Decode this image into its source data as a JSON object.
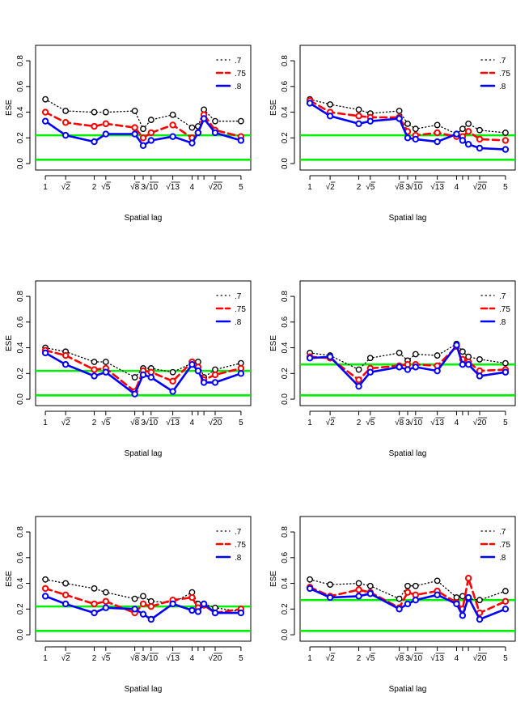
{
  "figure": {
    "layout": "3 rows x 2 columns of small-multiple line charts"
  },
  "chart_data": [
    {
      "panel": "row1-left",
      "type": "line",
      "xlabel": "Spatial lag",
      "ylabel": "ESE",
      "xlim": [
        0.8,
        5.2
      ],
      "ylim": [
        -0.05,
        0.92
      ],
      "x": [
        1,
        1.41421,
        2,
        2.23607,
        2.82843,
        3,
        3.16228,
        3.60555,
        4,
        4.12311,
        4.24264,
        4.47214,
        5
      ],
      "x_tick_values": [
        1,
        1.41421,
        2,
        2.23607,
        2.82843,
        3,
        3.16228,
        3.60555,
        4,
        4.12311,
        4.24264,
        4.47214,
        5
      ],
      "x_tick_labels": [
        "1",
        "√2",
        "2",
        "√5",
        "√8",
        "3",
        "√10",
        "√13",
        "4",
        "",
        "",
        "√20",
        "5"
      ],
      "y_ticks": [
        "0.0",
        "0.2",
        "0.4",
        "0.6",
        "0.8"
      ],
      "y_tick_values": [
        0,
        0.2,
        0.4,
        0.6,
        0.8
      ],
      "hlines": [
        0.22,
        0.03
      ],
      "hline_color": "#00ee00",
      "legend_position": "top-right",
      "series": [
        {
          "name": ".7",
          "style": "dotted",
          "color": "#000000",
          "values": [
            0.5,
            0.41,
            0.4,
            0.4,
            0.41,
            0.27,
            0.34,
            0.38,
            0.28,
            0.29,
            0.42,
            0.33,
            0.33
          ]
        },
        {
          "name": ".75",
          "style": "dashed",
          "color": "#ff0000",
          "values": [
            0.4,
            0.32,
            0.29,
            0.31,
            0.28,
            0.2,
            0.24,
            0.3,
            0.2,
            0.24,
            0.38,
            0.26,
            0.21
          ]
        },
        {
          "name": ".8",
          "style": "solid",
          "color": "#0000ff",
          "values": [
            0.33,
            0.22,
            0.17,
            0.23,
            0.23,
            0.14,
            0.18,
            0.21,
            0.16,
            0.24,
            0.35,
            0.24,
            0.18
          ]
        }
      ]
    },
    {
      "panel": "row1-right",
      "type": "line",
      "xlabel": "Spatial lag",
      "ylabel": "ESE",
      "xlim": [
        0.8,
        5.2
      ],
      "ylim": [
        -0.05,
        0.92
      ],
      "x": [
        1,
        1.41421,
        2,
        2.23607,
        2.82843,
        3,
        3.16228,
        3.60555,
        4,
        4.12311,
        4.24264,
        4.47214,
        5
      ],
      "x_tick_values": [
        1,
        1.41421,
        2,
        2.23607,
        2.82843,
        3,
        3.16228,
        3.60555,
        4,
        4.12311,
        4.24264,
        4.47214,
        5
      ],
      "x_tick_labels": [
        "1",
        "√2",
        "2",
        "√5",
        "√8",
        "3",
        "√10",
        "√13",
        "4",
        "",
        "",
        "√20",
        "5"
      ],
      "y_ticks": [
        "0.0",
        "0.2",
        "0.4",
        "0.6",
        "0.8"
      ],
      "y_tick_values": [
        0,
        0.2,
        0.4,
        0.6,
        0.8
      ],
      "hlines": [
        0.22,
        0.03
      ],
      "hline_color": "#00ee00",
      "legend_position": "top-right",
      "series": [
        {
          "name": ".7",
          "style": "dotted",
          "color": "#000000",
          "values": [
            0.5,
            0.46,
            0.42,
            0.39,
            0.41,
            0.31,
            0.27,
            0.3,
            0.23,
            0.27,
            0.31,
            0.26,
            0.24
          ]
        },
        {
          "name": ".75",
          "style": "dashed",
          "color": "#ff0000",
          "values": [
            0.49,
            0.4,
            0.37,
            0.36,
            0.36,
            0.25,
            0.22,
            0.24,
            0.21,
            0.21,
            0.25,
            0.19,
            0.18
          ]
        },
        {
          "name": ".8",
          "style": "solid",
          "color": "#0000ff",
          "values": [
            0.47,
            0.37,
            0.31,
            0.33,
            0.35,
            0.2,
            0.19,
            0.17,
            0.23,
            0.18,
            0.15,
            0.12,
            0.11
          ]
        }
      ]
    },
    {
      "panel": "row2-left",
      "type": "line",
      "xlabel": "Spatial lag",
      "ylabel": "ESE",
      "xlim": [
        0.8,
        5.2
      ],
      "ylim": [
        -0.05,
        0.92
      ],
      "x": [
        1,
        1.41421,
        2,
        2.23607,
        2.82843,
        3,
        3.16228,
        3.60555,
        4,
        4.12311,
        4.24264,
        4.47214,
        5
      ],
      "x_tick_values": [
        1,
        1.41421,
        2,
        2.23607,
        2.82843,
        3,
        3.16228,
        3.60555,
        4,
        4.12311,
        4.24264,
        4.47214,
        5
      ],
      "x_tick_labels": [
        "1",
        "√2",
        "2",
        "√5",
        "√8",
        "3",
        "√10",
        "√13",
        "4",
        "",
        "",
        "√20",
        "5"
      ],
      "y_ticks": [
        "0.0",
        "0.2",
        "0.4",
        "0.6",
        "0.8"
      ],
      "y_tick_values": [
        0,
        0.2,
        0.4,
        0.6,
        0.8
      ],
      "hlines": [
        0.22,
        0.03
      ],
      "hline_color": "#00ee00",
      "legend_position": "top-right",
      "series": [
        {
          "name": ".7",
          "style": "dotted",
          "color": "#000000",
          "values": [
            0.4,
            0.37,
            0.29,
            0.29,
            0.17,
            0.24,
            0.24,
            0.21,
            0.28,
            0.29,
            0.17,
            0.23,
            0.28
          ]
        },
        {
          "name": ".75",
          "style": "dashed",
          "color": "#ff0000",
          "values": [
            0.38,
            0.34,
            0.23,
            0.24,
            0.06,
            0.22,
            0.21,
            0.14,
            0.29,
            0.25,
            0.15,
            0.19,
            0.24
          ]
        },
        {
          "name": ".8",
          "style": "solid",
          "color": "#0000ff",
          "values": [
            0.36,
            0.27,
            0.18,
            0.21,
            0.04,
            0.19,
            0.17,
            0.06,
            0.27,
            0.22,
            0.13,
            0.13,
            0.2
          ]
        }
      ]
    },
    {
      "panel": "row2-right",
      "type": "line",
      "xlabel": "Spatial lag",
      "ylabel": "ESE",
      "xlim": [
        0.8,
        5.2
      ],
      "ylim": [
        -0.05,
        0.92
      ],
      "x": [
        1,
        1.41421,
        2,
        2.23607,
        2.82843,
        3,
        3.16228,
        3.60555,
        4,
        4.12311,
        4.24264,
        4.47214,
        5
      ],
      "x_tick_values": [
        1,
        1.41421,
        2,
        2.23607,
        2.82843,
        3,
        3.16228,
        3.60555,
        4,
        4.12311,
        4.24264,
        4.47214,
        5
      ],
      "x_tick_labels": [
        "1",
        "√2",
        "2",
        "√5",
        "√8",
        "3",
        "√10",
        "√13",
        "4",
        "",
        "",
        "√20",
        "5"
      ],
      "y_ticks": [
        "0.0",
        "0.2",
        "0.4",
        "0.6",
        "0.8"
      ],
      "y_tick_values": [
        0,
        0.2,
        0.4,
        0.6,
        0.8
      ],
      "hlines": [
        0.27,
        0.03
      ],
      "hline_color": "#00ee00",
      "legend_position": "top-right",
      "series": [
        {
          "name": ".7",
          "style": "dotted",
          "color": "#000000",
          "values": [
            0.36,
            0.34,
            0.23,
            0.32,
            0.36,
            0.3,
            0.35,
            0.34,
            0.43,
            0.37,
            0.33,
            0.31,
            0.28
          ]
        },
        {
          "name": ".75",
          "style": "dashed",
          "color": "#ff0000",
          "values": [
            0.33,
            0.32,
            0.15,
            0.24,
            0.26,
            0.27,
            0.27,
            0.26,
            0.41,
            0.31,
            0.29,
            0.22,
            0.23
          ]
        },
        {
          "name": ".8",
          "style": "solid",
          "color": "#0000ff",
          "values": [
            0.32,
            0.33,
            0.1,
            0.21,
            0.25,
            0.23,
            0.25,
            0.22,
            0.42,
            0.27,
            0.27,
            0.18,
            0.21
          ]
        }
      ]
    },
    {
      "panel": "row3-left",
      "type": "line",
      "xlabel": "Spatial lag",
      "ylabel": "ESE",
      "xlim": [
        0.8,
        5.2
      ],
      "ylim": [
        -0.05,
        0.92
      ],
      "x": [
        1,
        1.41421,
        2,
        2.23607,
        2.82843,
        3,
        3.16228,
        3.60555,
        4,
        4.12311,
        4.24264,
        4.47214,
        5
      ],
      "x_tick_values": [
        1,
        1.41421,
        2,
        2.23607,
        2.82843,
        3,
        3.16228,
        3.60555,
        4,
        4.12311,
        4.24264,
        4.47214,
        5
      ],
      "x_tick_labels": [
        "1",
        "√2",
        "2",
        "√5",
        "√8",
        "3",
        "√10",
        "√13",
        "4",
        "",
        "",
        "√20",
        "5"
      ],
      "y_ticks": [
        "0.0",
        "0.2",
        "0.4",
        "0.6",
        "0.8"
      ],
      "y_tick_values": [
        0,
        0.2,
        0.4,
        0.6,
        0.8
      ],
      "hlines": [
        0.22,
        0.03
      ],
      "hline_color": "#00ee00",
      "legend_position": "top-right",
      "series": [
        {
          "name": ".7",
          "style": "dotted",
          "color": "#000000",
          "values": [
            0.43,
            0.4,
            0.36,
            0.33,
            0.28,
            0.3,
            0.26,
            0.25,
            0.33,
            0.24,
            0.24,
            0.21,
            0.18
          ]
        },
        {
          "name": ".75",
          "style": "dashed",
          "color": "#ff0000",
          "values": [
            0.36,
            0.31,
            0.24,
            0.26,
            0.17,
            0.24,
            0.22,
            0.27,
            0.29,
            0.21,
            0.23,
            0.17,
            0.2
          ]
        },
        {
          "name": ".8",
          "style": "solid",
          "color": "#0000ff",
          "values": [
            0.3,
            0.24,
            0.17,
            0.21,
            0.2,
            0.16,
            0.12,
            0.24,
            0.19,
            0.18,
            0.24,
            0.17,
            0.17
          ]
        }
      ]
    },
    {
      "panel": "row3-right",
      "type": "line",
      "xlabel": "Spatial lag",
      "ylabel": "ESE",
      "xlim": [
        0.8,
        5.2
      ],
      "ylim": [
        -0.05,
        0.92
      ],
      "x": [
        1,
        1.41421,
        2,
        2.23607,
        2.82843,
        3,
        3.16228,
        3.60555,
        4,
        4.12311,
        4.24264,
        4.47214,
        5
      ],
      "x_tick_values": [
        1,
        1.41421,
        2,
        2.23607,
        2.82843,
        3,
        3.16228,
        3.60555,
        4,
        4.12311,
        4.24264,
        4.47214,
        5
      ],
      "x_tick_labels": [
        "1",
        "√2",
        "2",
        "√5",
        "√8",
        "3",
        "√10",
        "√13",
        "4",
        "",
        "",
        "√20",
        "5"
      ],
      "y_ticks": [
        "0.0",
        "0.2",
        "0.4",
        "0.6",
        "0.8"
      ],
      "y_tick_values": [
        0,
        0.2,
        0.4,
        0.6,
        0.8
      ],
      "hlines": [
        0.27,
        0.03
      ],
      "hline_color": "#00ee00",
      "legend_position": "top-right",
      "series": [
        {
          "name": ".7",
          "style": "dotted",
          "color": "#000000",
          "values": [
            0.43,
            0.39,
            0.4,
            0.38,
            0.28,
            0.38,
            0.38,
            0.42,
            0.29,
            0.3,
            0.28,
            0.27,
            0.34
          ]
        },
        {
          "name": ".75",
          "style": "dashed",
          "color": "#ff0000",
          "values": [
            0.37,
            0.3,
            0.35,
            0.33,
            0.21,
            0.33,
            0.31,
            0.34,
            0.25,
            0.2,
            0.44,
            0.17,
            0.26
          ]
        },
        {
          "name": ".8",
          "style": "solid",
          "color": "#0000ff",
          "values": [
            0.36,
            0.29,
            0.3,
            0.32,
            0.2,
            0.24,
            0.27,
            0.31,
            0.24,
            0.15,
            0.29,
            0.12,
            0.2
          ]
        }
      ]
    }
  ]
}
